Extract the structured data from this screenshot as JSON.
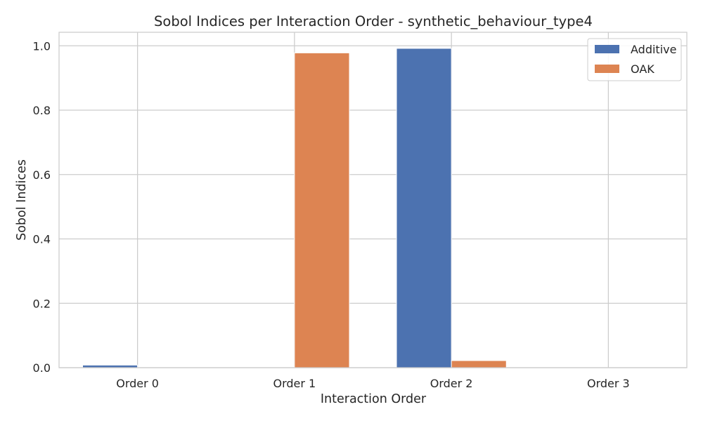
{
  "chart_data": {
    "type": "bar",
    "title": "Sobol Indices per Interaction Order - synthetic_behaviour_type4",
    "xlabel": "Interaction Order",
    "ylabel": "Sobol Indices",
    "categories": [
      "Order 0",
      "Order 1",
      "Order 2",
      "Order 3"
    ],
    "series": [
      {
        "name": "Additive",
        "color": "#4c72b0",
        "values": [
          0.008,
          0.0,
          0.992,
          0.0
        ]
      },
      {
        "name": "OAK",
        "color": "#dd8452",
        "values": [
          0.0,
          0.978,
          0.022,
          0.0
        ]
      }
    ],
    "yticks": [
      "0.0",
      "0.2",
      "0.4",
      "0.6",
      "0.8",
      "1.0"
    ],
    "ylim": [
      0,
      1.042
    ],
    "grid": true,
    "legend": "top-right"
  }
}
